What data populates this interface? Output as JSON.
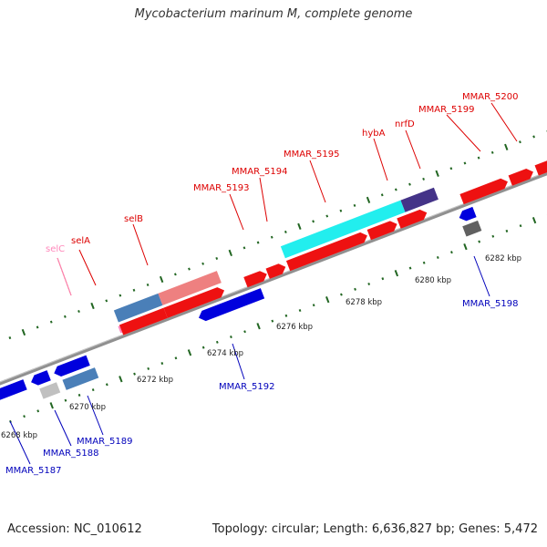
{
  "title": "Mycobacterium marinum M, complete genome",
  "footer": {
    "accession": "Accession: NC_010612",
    "topology": "Topology: circular; Length: 6,636,827 bp; Genes: 5,472"
  },
  "colors": {
    "forward_label": "#dd0000",
    "reverse_label": "#0000bb",
    "selC_label": "#ff88bb",
    "backbone": "#888888",
    "tick": "#226622"
  },
  "scale_labels": [
    "6268 kbp",
    "6270 kbp",
    "6272 kbp",
    "6274 kbp",
    "6276 kbp",
    "6278 kbp",
    "6280 kbp",
    "6282 kbp"
  ],
  "gene_labels": {
    "selC": "selC",
    "selA": "selA",
    "selB": "selB",
    "MMAR_5193": "MMAR_5193",
    "MMAR_5194": "MMAR_5194",
    "MMAR_5195": "MMAR_5195",
    "hybA": "hybA",
    "nrfD": "nrfD",
    "MMAR_5199": "MMAR_5199",
    "MMAR_5200": "MMAR_5200",
    "MMAR_5187": "MMAR_5187",
    "MMAR_5188": "MMAR_5188",
    "MMAR_5189": "MMAR_5189",
    "MMAR_5192": "MMAR_5192",
    "MMAR_5198": "MMAR_5198"
  }
}
